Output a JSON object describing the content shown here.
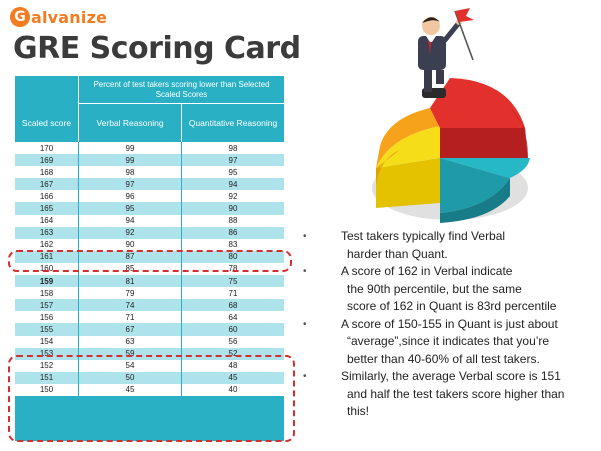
{
  "logo": {
    "mark": "G",
    "text": "alvanize"
  },
  "title": "GRE Scoring Card",
  "table": {
    "header_top": "Percent of test takers scoring lower than Selected Scaled Scores",
    "col_score": "Scaled score",
    "col_verbal": "Verbal Reasoning",
    "col_quant": "Quantitative Reasoning",
    "rows": [
      [
        "170",
        "99",
        "98"
      ],
      [
        "169",
        "99",
        "97"
      ],
      [
        "168",
        "98",
        "95"
      ],
      [
        "167",
        "97",
        "94"
      ],
      [
        "166",
        "96",
        "92"
      ],
      [
        "165",
        "95",
        "90"
      ],
      [
        "164",
        "94",
        "88"
      ],
      [
        "163",
        "92",
        "86"
      ],
      [
        "162",
        "90",
        "83"
      ],
      [
        "161",
        "87",
        "80"
      ],
      [
        "160",
        "85",
        "78"
      ],
      [
        "159",
        "81",
        "75"
      ],
      [
        "158",
        "79",
        "71"
      ],
      [
        "157",
        "74",
        "68"
      ],
      [
        "156",
        "71",
        "64"
      ],
      [
        "155",
        "67",
        "60"
      ],
      [
        "154",
        "63",
        "56"
      ],
      [
        "153",
        "59",
        "52"
      ],
      [
        "152",
        "54",
        "48"
      ],
      [
        "151",
        "50",
        "45"
      ],
      [
        "150",
        "45",
        "40"
      ]
    ]
  },
  "bullets": [
    [
      "Test takers typically find Verbal",
      "harder than Quant."
    ],
    [
      "A score of 162 in Verbal indicate",
      "the 90th percentile, but the same",
      "score of 162 in Quant is 83rd percentile"
    ],
    [
      "A score of 150-155 in Quant is just about",
      "“average”,since it indicates that you’re",
      "better than 40-60% of all test takers."
    ],
    [
      "Similarly, the average Verbal score is 151",
      "and half the test takers score higher than",
      "this!"
    ]
  ],
  "bullet_glyph": "•",
  "colors": {
    "brand": "#f47b20",
    "table_header": "#2ab0c4",
    "row_stripe": "#aee3ec",
    "highlight": "#d32f2f"
  },
  "illustration": "businessman-on-pie-chart-with-flag"
}
